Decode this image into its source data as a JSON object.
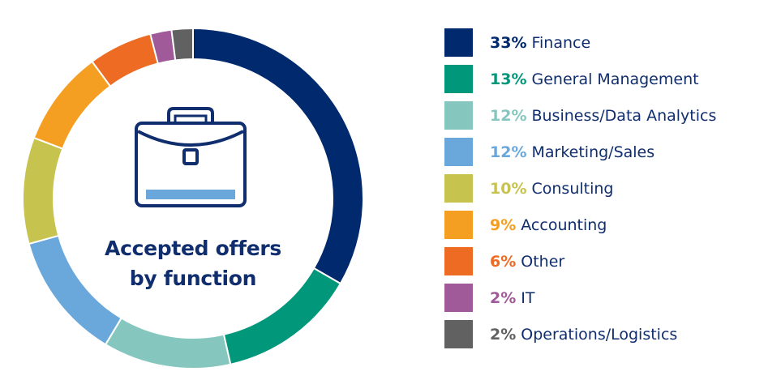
{
  "chart_data": {
    "type": "pie",
    "title": "",
    "center_label": [
      "Accepted offers",
      "by function"
    ],
    "categories": [
      "Finance",
      "General Management",
      "Business/Data Analytics",
      "Marketing/Sales",
      "Consulting",
      "Accounting",
      "Other",
      "IT",
      "Operations/Logistics"
    ],
    "values": [
      33,
      13,
      12,
      12,
      10,
      9,
      6,
      2,
      2
    ],
    "percent_labels": [
      "33%",
      "13%",
      "12%",
      "12%",
      "10%",
      "9%",
      "6%",
      "2%",
      "2%"
    ],
    "colors": [
      "#00296e",
      "#00977a",
      "#85c7bf",
      "#6aa8dc",
      "#c6c34f",
      "#f59f22",
      "#ee6b23",
      "#a05a99",
      "#616161"
    ],
    "legend_position": "right"
  },
  "center_icon": "briefcase-icon",
  "accent_color": "#102d6e"
}
